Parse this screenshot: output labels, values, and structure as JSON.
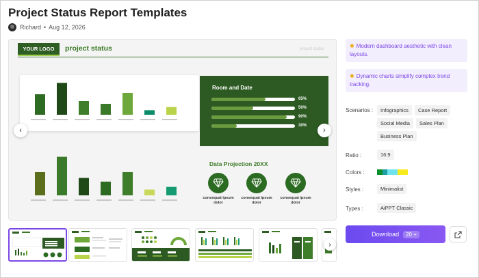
{
  "page": {
    "title": "Project Status Report Templates",
    "author": "Richard",
    "date": "Aug 12, 2026"
  },
  "preview": {
    "logo_text": "YOUR LOGO",
    "slide_title": "project status",
    "ghost_title": "project status",
    "room_title": "Room and Date",
    "progress": [
      {
        "label": "65%",
        "value": 0.65
      },
      {
        "label": "50%",
        "value": 0.5
      },
      {
        "label": "90%",
        "value": 0.9
      },
      {
        "label": "30%",
        "value": 0.3
      }
    ],
    "projection_title": "Data Projection 20XX",
    "projection_items": [
      "consequat ipsum dolor",
      "consequat ipsum dolor",
      "consequat ipsum dolor"
    ],
    "bars_top": [
      0.45,
      0.7,
      0.3,
      0.24,
      0.48,
      0.1,
      0.17
    ],
    "bars_bottom": [
      0.44,
      0.73,
      0.33,
      0.26,
      0.44,
      0.11,
      0.16
    ],
    "bar_colors": [
      "#2e6b22",
      "#1f4a17",
      "#3e7d29",
      "#3a7a2a",
      "#6fa83a",
      "#0e8c6a",
      "#b9d44a"
    ],
    "bar_colors_bottom": [
      "#5a6e1c",
      "#3a7a2a",
      "#1f4a17",
      "#2e6b22",
      "#3e7d29",
      "#c9d85a",
      "#159a72"
    ]
  },
  "features": [
    {
      "icon": "sparkle-icon",
      "text": "Modern dashboard aesthetic with clean layouts."
    },
    {
      "icon": "sparkle-icon",
      "text": "Dynamic charts simplify complex trend tracking."
    }
  ],
  "meta": {
    "scenarios_label": "Scenarios :",
    "scenarios": [
      "Infographics",
      "Case Report",
      "Social Media",
      "Sales Plan",
      "Business Plan"
    ],
    "ratio_label": "Ratio :",
    "ratio": "16:9",
    "colors_label": "Colors :",
    "colors": [
      "#0a8f2a",
      "#1e9fa0",
      "#6fe3f0",
      "#f7ea1e"
    ],
    "styles_label": "Styles :",
    "style": "Minimalist",
    "types_label": "Types :",
    "type": "AiPPT Classic"
  },
  "actions": {
    "download_label": "Download",
    "download_count": "20",
    "download_badge_icon": "+"
  }
}
